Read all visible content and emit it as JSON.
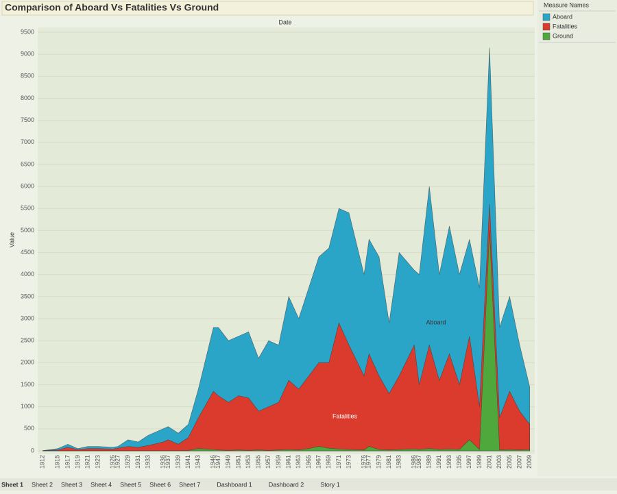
{
  "chart_data": {
    "type": "area",
    "title": "Comparison of Aboard Vs Fatalities Vs Ground",
    "x_header": "Date",
    "ylabel": "Value",
    "legend_title": "Measure Names",
    "annotations": [
      "Aboard",
      "Fatalities"
    ],
    "x": [
      1912,
      1915,
      1917,
      1919,
      1921,
      1923,
      1926,
      1927,
      1929,
      1931,
      1933,
      1936,
      1937,
      1939,
      1941,
      1943,
      1946,
      1947,
      1949,
      1951,
      1953,
      1955,
      1957,
      1959,
      1961,
      1963,
      1965,
      1967,
      1969,
      1971,
      1973,
      1976,
      1977,
      1979,
      1981,
      1983,
      1986,
      1987,
      1989,
      1991,
      1993,
      1995,
      1997,
      1999,
      2001,
      2003,
      2005,
      2007,
      2009
    ],
    "xlim": [
      1911,
      2010
    ],
    "ylim": [
      0,
      9500
    ],
    "yticks": [
      0,
      500,
      1000,
      1500,
      2000,
      2500,
      3000,
      3500,
      4000,
      4500,
      5000,
      5500,
      6000,
      6500,
      7000,
      7500,
      8000,
      8500,
      9000,
      9500
    ],
    "grid": true,
    "series": [
      {
        "name": "Aboard",
        "color": "#2ba5c7",
        "values": [
          5,
          50,
          150,
          50,
          100,
          100,
          80,
          100,
          250,
          200,
          350,
          500,
          550,
          400,
          600,
          1400,
          2800,
          2800,
          2500,
          2600,
          2700,
          2100,
          2500,
          2400,
          3500,
          3000,
          3700,
          4400,
          4600,
          5500,
          5400,
          4000,
          4800,
          4400,
          2900,
          4500,
          4100,
          4000,
          6000,
          4000,
          5100,
          4000,
          4800,
          3700,
          9150,
          2800,
          3500,
          2400,
          1450
        ]
      },
      {
        "name": "Fatalities",
        "color": "#da3b2c",
        "values": [
          5,
          20,
          80,
          30,
          50,
          50,
          40,
          60,
          100,
          80,
          120,
          200,
          250,
          150,
          300,
          750,
          1350,
          1250,
          1100,
          1250,
          1200,
          900,
          1000,
          1100,
          1600,
          1400,
          1700,
          2000,
          2000,
          2900,
          2400,
          1700,
          2200,
          1700,
          1300,
          1700,
          2400,
          1500,
          2400,
          1600,
          2200,
          1500,
          2600,
          1000,
          5600,
          750,
          1350,
          900,
          600
        ]
      },
      {
        "name": "Ground",
        "color": "#4ea83c",
        "values": [
          0,
          0,
          0,
          0,
          0,
          0,
          0,
          0,
          0,
          0,
          0,
          0,
          0,
          0,
          10,
          50,
          30,
          20,
          10,
          20,
          10,
          20,
          10,
          20,
          30,
          20,
          50,
          100,
          60,
          40,
          30,
          20,
          100,
          30,
          20,
          30,
          40,
          30,
          50,
          30,
          40,
          30,
          250,
          30,
          5000,
          20,
          30,
          20,
          30
        ]
      }
    ]
  },
  "tabs": [
    "Sheet 1",
    "Sheet 2",
    "Sheet 3",
    "Sheet 4",
    "Sheet 5",
    "Sheet 6",
    "Sheet 7",
    "Dashboard 1",
    "Dashboard 2",
    "Story 1"
  ]
}
